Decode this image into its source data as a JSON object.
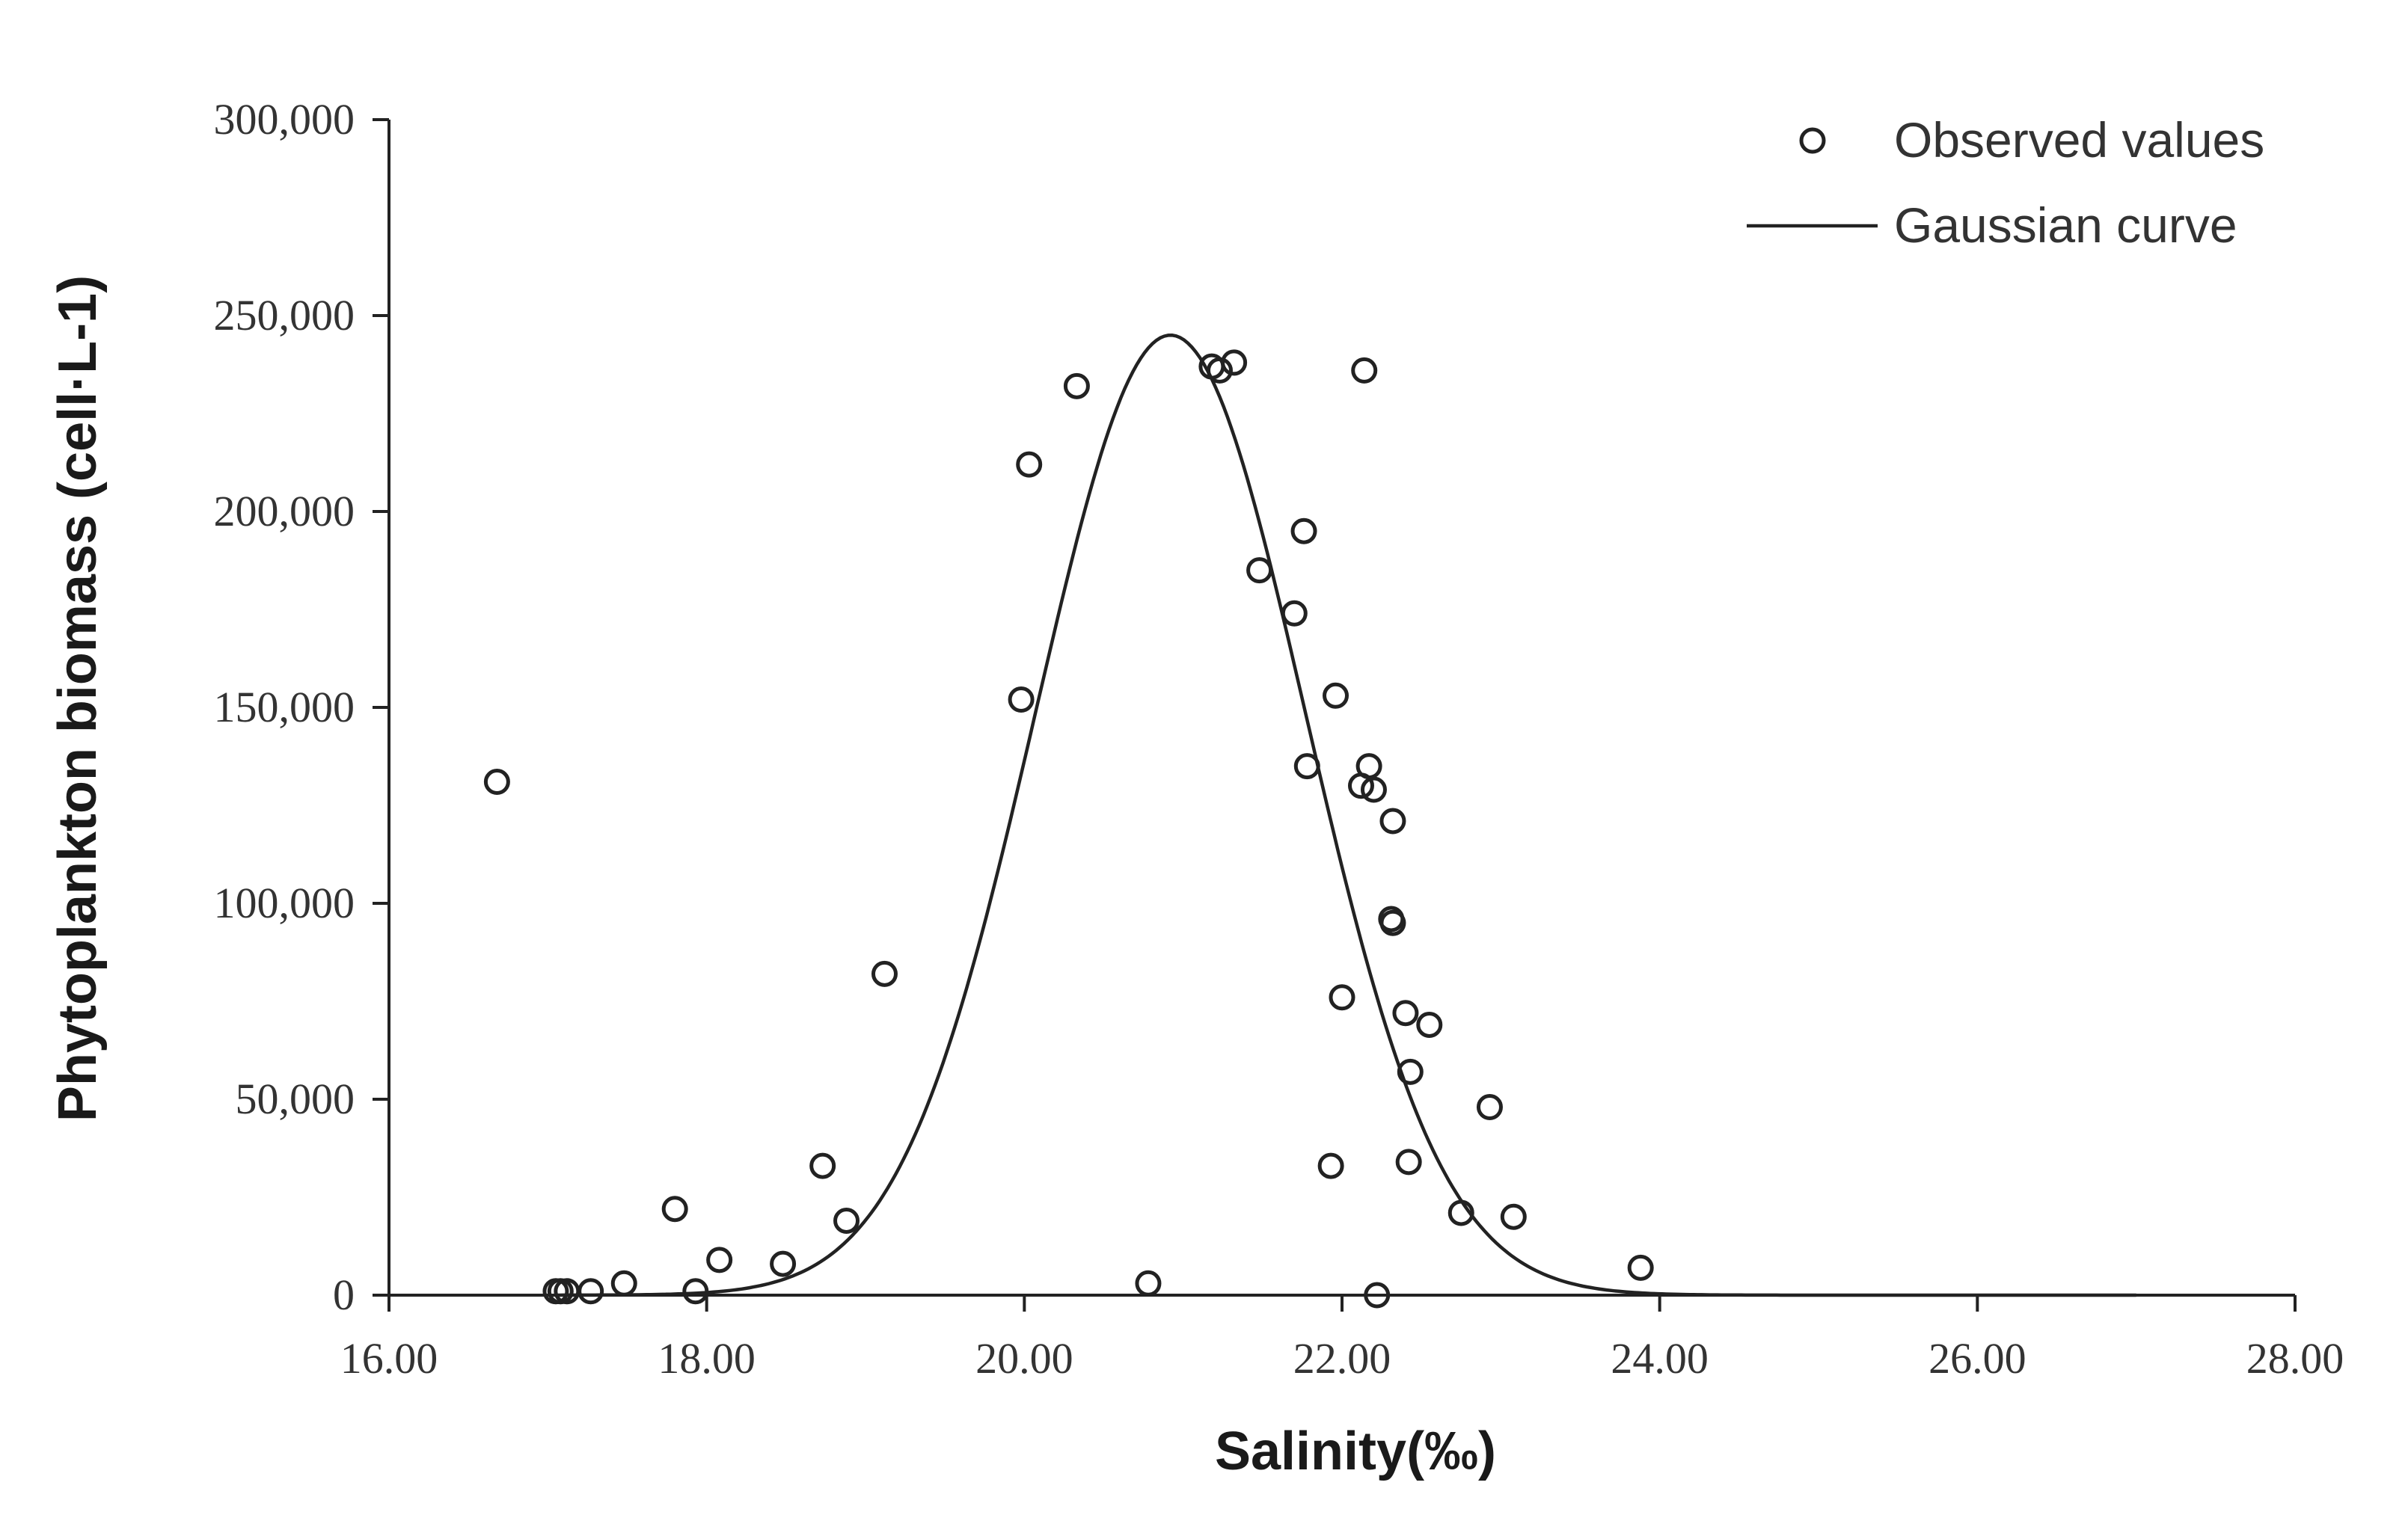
{
  "chart_data": {
    "type": "scatter",
    "title": "",
    "xlabel": "Salinity(‰)",
    "ylabel": "Phytoplankton biomass (cell·L-1)",
    "xlim": [
      16,
      28
    ],
    "ylim": [
      0,
      300000
    ],
    "grid": false,
    "legend_position": "top-right",
    "x_ticks": [
      16,
      18,
      20,
      22,
      24,
      26,
      28
    ],
    "x_tick_labels": [
      "16.00",
      "18.00",
      "20.00",
      "22.00",
      "24.00",
      "26.00",
      "28.00"
    ],
    "y_ticks": [
      0,
      50000,
      100000,
      150000,
      200000,
      250000,
      300000
    ],
    "y_tick_labels": [
      "0",
      "50,000",
      "100,000",
      "150,000",
      "200,000",
      "250,000",
      "300,000"
    ],
    "series": [
      {
        "name": "Observed values",
        "kind": "scatter",
        "marker": "open-circle",
        "points": [
          [
            16.68,
            131000
          ],
          [
            17.05,
            1000
          ],
          [
            17.08,
            1000
          ],
          [
            17.12,
            1000
          ],
          [
            17.27,
            1000
          ],
          [
            17.48,
            3000
          ],
          [
            17.8,
            22000
          ],
          [
            17.93,
            1000
          ],
          [
            18.08,
            9000
          ],
          [
            18.48,
            8000
          ],
          [
            18.73,
            33000
          ],
          [
            18.88,
            19000
          ],
          [
            19.12,
            82000
          ],
          [
            19.98,
            152000
          ],
          [
            20.03,
            212000
          ],
          [
            20.33,
            232000
          ],
          [
            20.78,
            3000
          ],
          [
            21.18,
            237000
          ],
          [
            21.23,
            236000
          ],
          [
            21.32,
            238000
          ],
          [
            21.48,
            185000
          ],
          [
            21.7,
            174000
          ],
          [
            21.76,
            195000
          ],
          [
            21.78,
            135000
          ],
          [
            21.93,
            33000
          ],
          [
            21.96,
            153000
          ],
          [
            22.0,
            76000
          ],
          [
            22.12,
            130000
          ],
          [
            22.14,
            236000
          ],
          [
            22.17,
            135000
          ],
          [
            22.2,
            129000
          ],
          [
            22.22,
            0
          ],
          [
            22.31,
            96000
          ],
          [
            22.32,
            95000
          ],
          [
            22.32,
            121000
          ],
          [
            22.4,
            72000
          ],
          [
            22.42,
            34000
          ],
          [
            22.43,
            57000
          ],
          [
            22.55,
            69000
          ],
          [
            22.75,
            21000
          ],
          [
            22.93,
            48000
          ],
          [
            23.08,
            20000
          ],
          [
            23.88,
            7000
          ]
        ]
      },
      {
        "name": "Gaussian curve",
        "kind": "line",
        "model": "gaussian",
        "amplitude": 245000,
        "mean": 20.92,
        "sigma": 0.85,
        "x_range": [
          17.05,
          27.0
        ]
      }
    ]
  }
}
